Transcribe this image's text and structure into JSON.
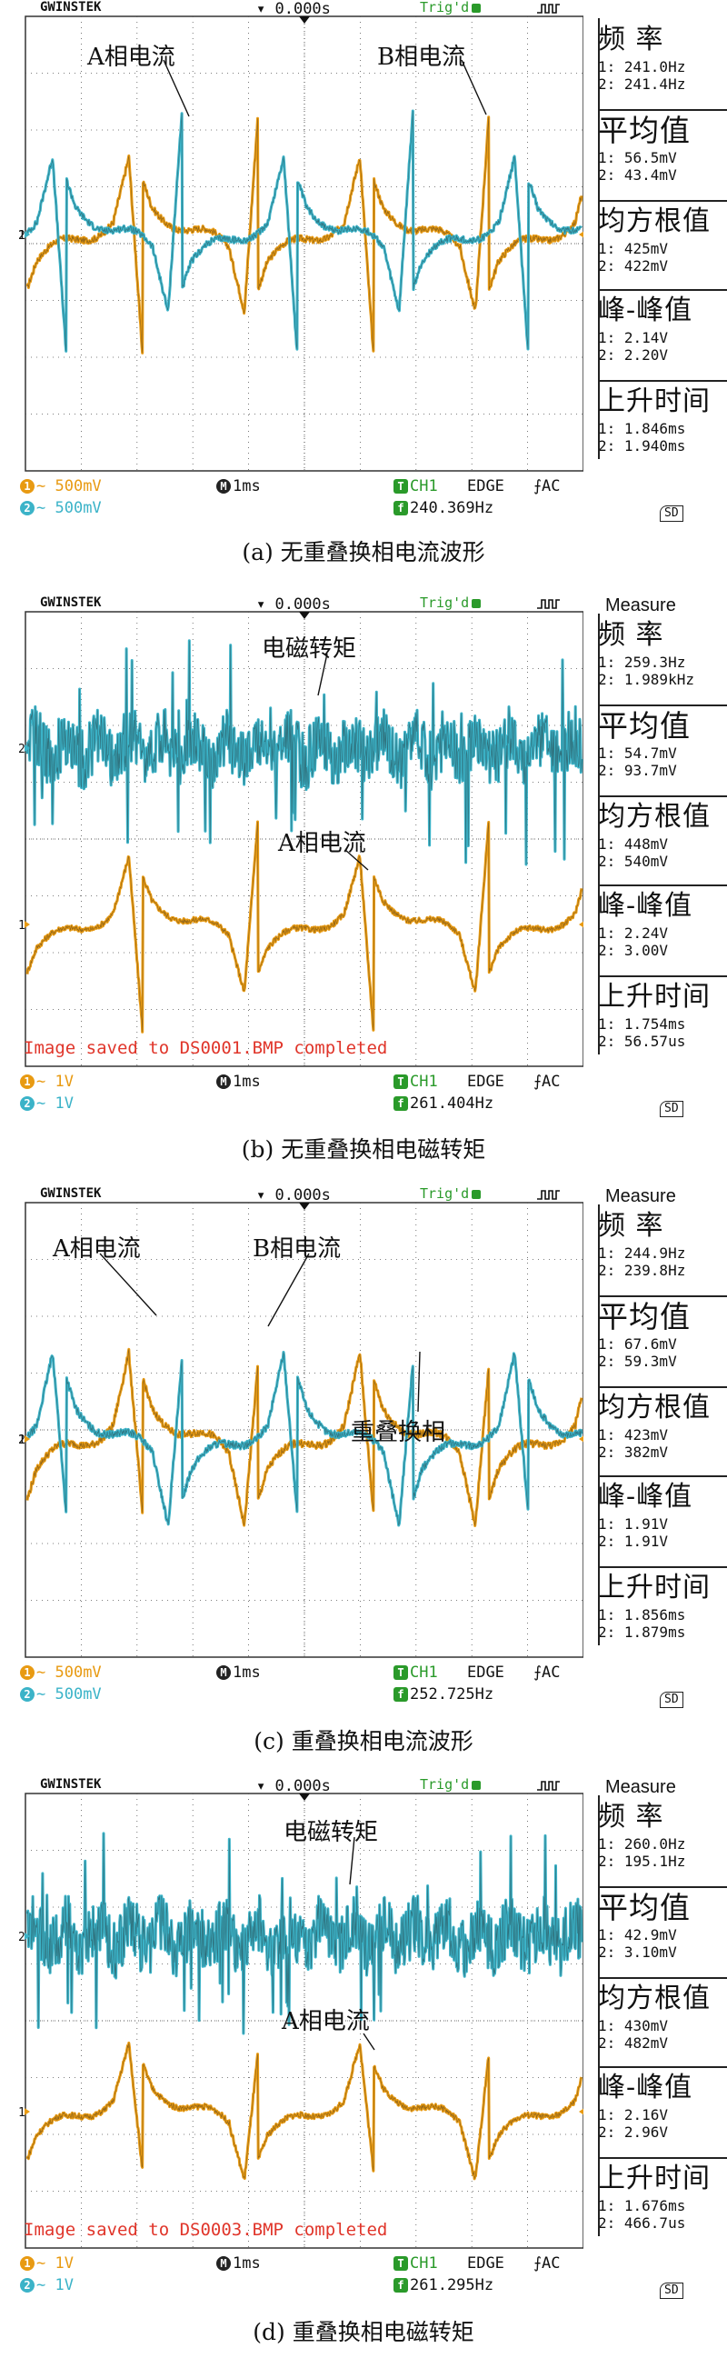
{
  "panels": [
    {
      "scope": {
        "brand": "GWINSTEK",
        "time_offset": "0.000s",
        "trigger_status": "Trig'd",
        "measure_title": "",
        "saved_msg": "",
        "ch1_scale": "500mV",
        "ch2_scale": "500mV",
        "timebase": "1ms",
        "trigger_source": "CH1",
        "trigger_type": "EDGE",
        "coupling": "AC",
        "freq_readout": "240.369Hz",
        "sd_label": "SD"
      },
      "measurements": [
        {
          "label": "频  率",
          "v1": "1: 241.0Hz",
          "v2": "2: 241.4Hz"
        },
        {
          "label": "平均值",
          "v1": "1: 56.5mV",
          "v2": "2: 43.4mV"
        },
        {
          "label": "均方根值",
          "v1": "1: 425mV",
          "v2": "2: 422mV"
        },
        {
          "label": "峰-峰值",
          "v1": "1: 2.14V",
          "v2": "2: 2.20V"
        },
        {
          "label": "上升时间",
          "v1": "1: 1.846ms",
          "v2": "2: 1.940ms"
        }
      ],
      "annotations": [
        "A相电流",
        "B相电流"
      ],
      "caption": "(a) 无重叠换相电流波形"
    },
    {
      "scope": {
        "brand": "GWINSTEK",
        "time_offset": "0.000s",
        "trigger_status": "Trig'd",
        "measure_title": "Measure",
        "saved_msg": "Image saved to DS0001.BMP completed",
        "ch1_scale": "1V",
        "ch2_scale": "1V",
        "timebase": "1ms",
        "trigger_source": "CH1",
        "trigger_type": "EDGE",
        "coupling": "AC",
        "freq_readout": "261.404Hz",
        "sd_label": "SD"
      },
      "measurements": [
        {
          "label": "频  率",
          "v1": "1: 259.3Hz",
          "v2": "2: 1.989kHz"
        },
        {
          "label": "平均值",
          "v1": "1: 54.7mV",
          "v2": "2: 93.7mV"
        },
        {
          "label": "均方根值",
          "v1": "1: 448mV",
          "v2": "2: 540mV"
        },
        {
          "label": "峰-峰值",
          "v1": "1: 2.24V",
          "v2": "2: 3.00V"
        },
        {
          "label": "上升时间",
          "v1": "1: 1.754ms",
          "v2": "2: 56.57us"
        }
      ],
      "annotations": [
        "电磁转矩",
        "A相电流"
      ],
      "caption": "(b) 无重叠换相电磁转矩"
    },
    {
      "scope": {
        "brand": "GWINSTEK",
        "time_offset": "0.000s",
        "trigger_status": "Trig'd",
        "measure_title": "Measure",
        "saved_msg": "",
        "ch1_scale": "500mV",
        "ch2_scale": "500mV",
        "timebase": "1ms",
        "trigger_source": "CH1",
        "trigger_type": "EDGE",
        "coupling": "AC",
        "freq_readout": "252.725Hz",
        "sd_label": "SD"
      },
      "measurements": [
        {
          "label": "频  率",
          "v1": "1: 244.9Hz",
          "v2": "2: 239.8Hz"
        },
        {
          "label": "平均值",
          "v1": "1: 67.6mV",
          "v2": "2: 59.3mV"
        },
        {
          "label": "均方根值",
          "v1": "1: 423mV",
          "v2": "2: 382mV"
        },
        {
          "label": "峰-峰值",
          "v1": "1: 1.91V",
          "v2": "2: 1.91V"
        },
        {
          "label": "上升时间",
          "v1": "1: 1.856ms",
          "v2": "2: 1.879ms"
        }
      ],
      "annotations": [
        "A相电流",
        "B相电流",
        "重叠换相"
      ],
      "caption": "(c) 重叠换相电流波形"
    },
    {
      "scope": {
        "brand": "GWINSTEK",
        "time_offset": "0.000s",
        "trigger_status": "Trig'd",
        "measure_title": "Measure",
        "saved_msg": "Image saved to DS0003.BMP completed",
        "ch1_scale": "1V",
        "ch2_scale": "1V",
        "timebase": "1ms",
        "trigger_source": "CH1",
        "trigger_type": "EDGE",
        "coupling": "AC",
        "freq_readout": "261.295Hz",
        "sd_label": "SD"
      },
      "measurements": [
        {
          "label": "频  率",
          "v1": "1: 260.0Hz",
          "v2": "2: 195.1Hz"
        },
        {
          "label": "平均值",
          "v1": "1: 42.9mV",
          "v2": "2: 3.10mV"
        },
        {
          "label": "均方根值",
          "v1": "1: 430mV",
          "v2": "2: 482mV"
        },
        {
          "label": "峰-峰值",
          "v1": "1: 2.16V",
          "v2": "2: 2.96V"
        },
        {
          "label": "上升时间",
          "v1": "1: 1.676ms",
          "v2": "2: 466.7us"
        }
      ],
      "annotations": [
        "电磁转矩",
        "A相电流"
      ],
      "caption": "(d) 重叠换相电磁转矩"
    }
  ],
  "colors": {
    "ch1": "#e89a12",
    "ch2": "#3bb3c8",
    "grid": "#555555",
    "trigger": "#2a9a2a",
    "saved_msg": "#e0352a"
  },
  "chart_data": [
    {
      "type": "line",
      "title": "(a) 无重叠换相电流波形",
      "xlabel": "",
      "ylabel": "",
      "x_unit_per_div": "1ms",
      "series": [
        {
          "name": "A相电流",
          "channel": 1,
          "scale_per_div": "500mV",
          "shape": "phase-current-no-overlap",
          "frequency_hz": 241.0,
          "mean_mv": 56.5,
          "rms_mv": 425,
          "vpp_v": 2.14,
          "rise_ms": 1.846
        },
        {
          "name": "B相电流",
          "channel": 2,
          "scale_per_div": "500mV",
          "shape": "phase-current-no-overlap",
          "frequency_hz": 241.4,
          "mean_mv": 43.4,
          "rms_mv": 422,
          "vpp_v": 2.2,
          "rise_ms": 1.94
        }
      ]
    },
    {
      "type": "line",
      "title": "(b) 无重叠换相电磁转矩",
      "xlabel": "",
      "ylabel": "",
      "x_unit_per_div": "1ms",
      "series": [
        {
          "name": "A相电流",
          "channel": 1,
          "scale_per_div": "1V",
          "shape": "phase-current-no-overlap",
          "frequency_hz": 259.3,
          "mean_mv": 54.7,
          "rms_mv": 448,
          "vpp_v": 2.24,
          "rise_ms": 1.754
        },
        {
          "name": "电磁转矩",
          "channel": 2,
          "scale_per_div": "1V",
          "shape": "torque-ripple",
          "frequency_hz": 1989,
          "mean_mv": 93.7,
          "rms_mv": 540,
          "vpp_v": 3.0,
          "rise_us": 56.57
        }
      ]
    },
    {
      "type": "line",
      "title": "(c) 重叠换相电流波形",
      "xlabel": "",
      "ylabel": "",
      "x_unit_per_div": "1ms",
      "series": [
        {
          "name": "A相电流",
          "channel": 1,
          "scale_per_div": "500mV",
          "shape": "phase-current-overlap",
          "frequency_hz": 244.9,
          "mean_mv": 67.6,
          "rms_mv": 423,
          "vpp_v": 1.91,
          "rise_ms": 1.856
        },
        {
          "name": "B相电流",
          "channel": 2,
          "scale_per_div": "500mV",
          "shape": "phase-current-overlap",
          "frequency_hz": 239.8,
          "mean_mv": 59.3,
          "rms_mv": 382,
          "vpp_v": 1.91,
          "rise_ms": 1.879
        }
      ]
    },
    {
      "type": "line",
      "title": "(d) 重叠换相电磁转矩",
      "xlabel": "",
      "ylabel": "",
      "x_unit_per_div": "1ms",
      "series": [
        {
          "name": "A相电流",
          "channel": 1,
          "scale_per_div": "1V",
          "shape": "phase-current-overlap",
          "frequency_hz": 260.0,
          "mean_mv": 42.9,
          "rms_mv": 430,
          "vpp_v": 2.16,
          "rise_ms": 1.676
        },
        {
          "name": "电磁转矩",
          "channel": 2,
          "scale_per_div": "1V",
          "shape": "torque-ripple",
          "frequency_hz": 195.1,
          "mean_mv": 3.1,
          "rms_mv": 482,
          "vpp_v": 2.96,
          "rise_us": 466.7
        }
      ]
    }
  ]
}
